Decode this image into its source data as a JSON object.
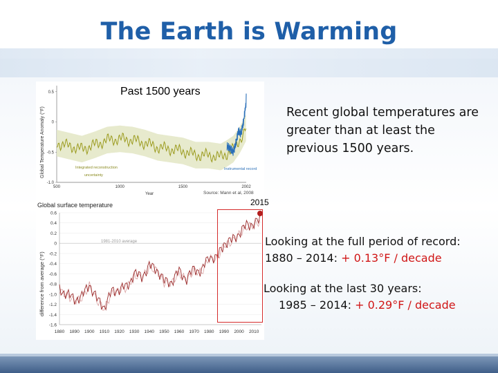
{
  "slide": {
    "title": "The Earth is Warming",
    "past_label": "Past 1500 years",
    "statement": "Recent global temperatures are greater than at least the previous 1500 years.",
    "full_period": {
      "line1": "Looking at the full period of record:",
      "range": "1880 – 2014:",
      "rate": "+ 0.13°F / decade"
    },
    "last30": {
      "line1": "Looking at the last 30 years:",
      "range": "1985 – 2014:",
      "rate": "+ 0.29°F / decade"
    },
    "marker_year": "2015",
    "colors": {
      "title": "#1f5fa8",
      "highlight": "#d01515",
      "box": "#d42a2a"
    }
  },
  "top_chart": {
    "ylabel": "Global Temperature Anomaly (°F)",
    "xlabel": "Year",
    "yticks": [
      "0.5",
      "0",
      "-0.5",
      "-1.0"
    ],
    "xticks": [
      "500",
      "1000",
      "1500",
      "2002"
    ],
    "legend_recon": "Integrated reconstruction",
    "legend_uncert": "uncertainty",
    "legend_instr": "Instrumental record",
    "source": "Source: Mann et al, 2008"
  },
  "chart_data": [
    {
      "type": "line",
      "title": "",
      "xlabel": "Year",
      "ylabel": "Global Temperature Anomaly (°F)",
      "xlim": [
        500,
        2002
      ],
      "ylim": [
        -1.0,
        0.6
      ],
      "series": [
        {
          "name": "Integrated reconstruction",
          "x": [
            500,
            600,
            700,
            800,
            900,
            1000,
            1100,
            1200,
            1300,
            1400,
            1500,
            1600,
            1700,
            1800,
            1850,
            1900,
            1950,
            2000
          ],
          "values": [
            -0.35,
            -0.4,
            -0.45,
            -0.38,
            -0.3,
            -0.28,
            -0.3,
            -0.35,
            -0.42,
            -0.45,
            -0.48,
            -0.55,
            -0.55,
            -0.58,
            -0.52,
            -0.45,
            -0.3,
            -0.1
          ]
        },
        {
          "name": "Instrumental record",
          "x": [
            1850,
            1880,
            1900,
            1920,
            1940,
            1960,
            1980,
            1990,
            2000,
            2002
          ],
          "values": [
            -0.4,
            -0.45,
            -0.5,
            -0.35,
            -0.15,
            -0.2,
            0.0,
            0.15,
            0.3,
            0.4
          ]
        }
      ]
    },
    {
      "type": "line",
      "title": "Global surface temperature",
      "xlabel": "",
      "ylabel": "difference from average (°F)",
      "annotation": "1981-2010 average",
      "xticks": [
        "1880",
        "1890",
        "1900",
        "1910",
        "1920",
        "1930",
        "1940",
        "1950",
        "1960",
        "1970",
        "1980",
        "1990",
        "2000",
        "2010"
      ],
      "yticks": [
        "0.6",
        "0.4",
        "0.2",
        "0",
        "-0.2",
        "-0.4",
        "-0.6",
        "-0.8",
        "-1.0",
        "-1.2",
        "-1.4",
        "-1.6"
      ],
      "xlim": [
        1880,
        2015
      ],
      "ylim": [
        -1.6,
        0.6
      ],
      "series": [
        {
          "x": [
            1880,
            1885,
            1890,
            1895,
            1900,
            1905,
            1910,
            1915,
            1920,
            1925,
            1930,
            1935,
            1940,
            1945,
            1950,
            1955,
            1960,
            1965,
            1970,
            1975,
            1980,
            1985,
            1990,
            1995,
            2000,
            2005,
            2010,
            2014
          ],
          "values": [
            -0.9,
            -1.0,
            -1.1,
            -1.05,
            -0.8,
            -1.1,
            -1.25,
            -0.95,
            -0.9,
            -0.85,
            -0.6,
            -0.65,
            -0.45,
            -0.5,
            -0.75,
            -0.75,
            -0.55,
            -0.7,
            -0.5,
            -0.55,
            -0.25,
            -0.3,
            0.0,
            0.05,
            0.2,
            0.35,
            0.4,
            0.45
          ]
        }
      ]
    }
  ]
}
